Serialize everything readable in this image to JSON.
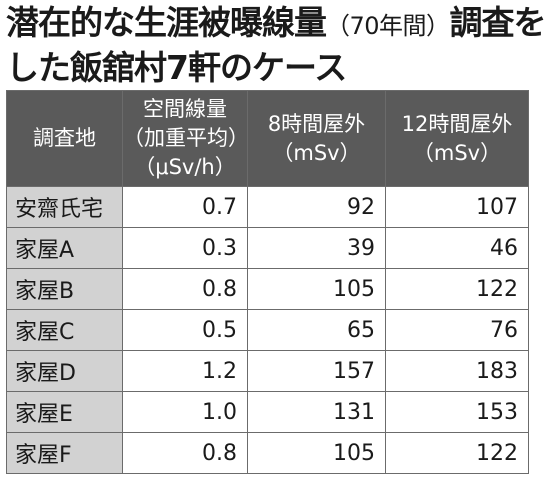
{
  "title": {
    "part1": "潜在的な生涯被曝線量",
    "paren": "（70年間）",
    "part2": "調査を",
    "line2": "した飯舘村7軒のケース"
  },
  "table": {
    "headers": [
      {
        "lines": [
          "調査地"
        ]
      },
      {
        "lines": [
          "空間線量",
          "（加重平均）",
          "（μSv/h）"
        ]
      },
      {
        "lines": [
          "8時間屋外",
          "（mSv）"
        ]
      },
      {
        "lines": [
          "12時間屋外",
          "（mSv）"
        ]
      }
    ],
    "rows": [
      {
        "location": "安齋氏宅",
        "dose_rate": "0.7",
        "outdoor_8h": "92",
        "outdoor_12h": "107"
      },
      {
        "location": "家屋A",
        "dose_rate": "0.3",
        "outdoor_8h": "39",
        "outdoor_12h": "46"
      },
      {
        "location": "家屋B",
        "dose_rate": "0.8",
        "outdoor_8h": "105",
        "outdoor_12h": "122"
      },
      {
        "location": "家屋C",
        "dose_rate": "0.5",
        "outdoor_8h": "65",
        "outdoor_12h": "76"
      },
      {
        "location": "家屋D",
        "dose_rate": "1.2",
        "outdoor_8h": "157",
        "outdoor_12h": "183"
      },
      {
        "location": "家屋E",
        "dose_rate": "1.0",
        "outdoor_8h": "131",
        "outdoor_12h": "153"
      },
      {
        "location": "家屋F",
        "dose_rate": "0.8",
        "outdoor_8h": "105",
        "outdoor_12h": "122"
      }
    ]
  }
}
